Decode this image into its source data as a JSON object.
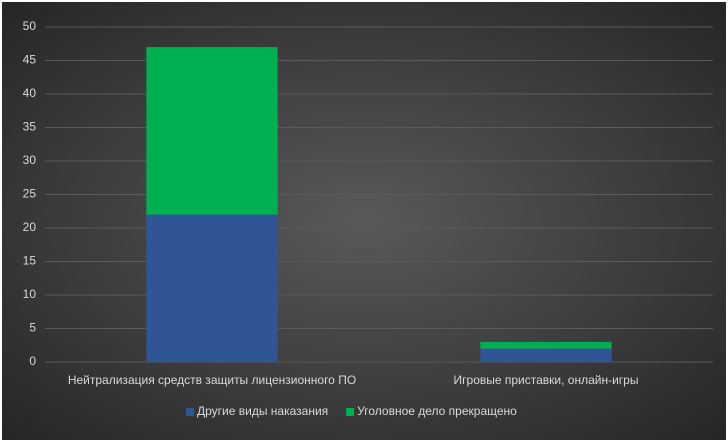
{
  "chart_data": {
    "type": "stacked_bar",
    "categories": [
      "Нейтрализация средств защиты лицензионного ПО",
      "Игровые приставки, онлайн-игры"
    ],
    "series": [
      {
        "name": "Другие виды наказания",
        "color": "#2f5597",
        "values": [
          22,
          2
        ]
      },
      {
        "name": "Уголовное дело прекращено",
        "color": "#00b050",
        "values": [
          25,
          1
        ]
      }
    ],
    "ylim": [
      0,
      50
    ],
    "yticks": [
      0,
      5,
      10,
      15,
      20,
      25,
      30,
      35,
      40,
      45,
      50
    ],
    "grid": true,
    "legend": "bottom"
  }
}
